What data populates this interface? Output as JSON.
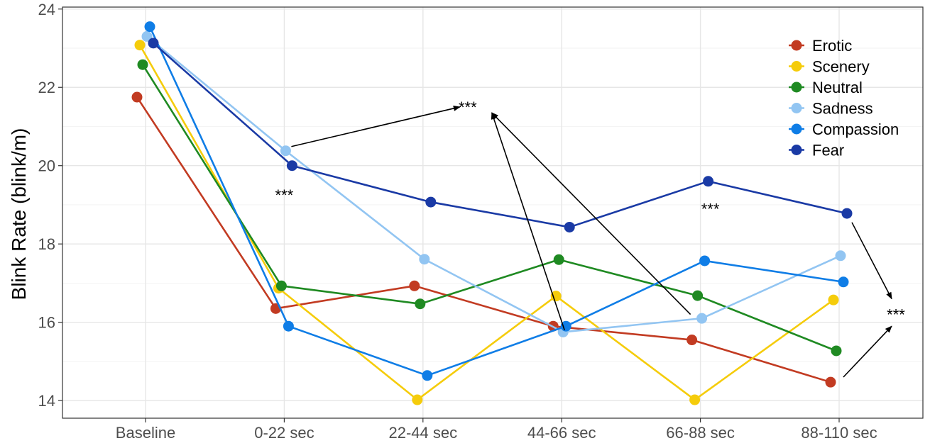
{
  "chart_data": {
    "type": "line",
    "title": "",
    "xlabel": "",
    "ylabel": "Blink Rate (blink/m)",
    "categories": [
      "Baseline",
      "0-22 sec",
      "22-44 sec",
      "44-66 sec",
      "66-88 sec",
      "88-110 sec"
    ],
    "ylim": [
      13.55,
      24.05
    ],
    "yticks": [
      14,
      16,
      18,
      20,
      22,
      24
    ],
    "ytick_labels": [
      "14",
      "16",
      "18",
      "20",
      "22",
      "24"
    ],
    "grid": true,
    "legend_position": "top-right",
    "series": [
      {
        "name": "Erotic",
        "color": "#c23b22",
        "values": [
          21.75,
          16.35,
          16.93,
          15.9,
          15.55,
          14.47
        ]
      },
      {
        "name": "Scenery",
        "color": "#f5cc0b",
        "values": [
          23.08,
          16.87,
          14.02,
          16.67,
          14.02,
          16.57
        ]
      },
      {
        "name": "Neutral",
        "color": "#1f8a22",
        "values": [
          22.58,
          16.93,
          16.47,
          17.6,
          16.68,
          15.27
        ]
      },
      {
        "name": "Sadness",
        "color": "#92c5f2",
        "values": [
          23.3,
          20.38,
          17.61,
          15.75,
          16.1,
          17.7
        ]
      },
      {
        "name": "Compassion",
        "color": "#0f7de6",
        "values": [
          23.55,
          15.9,
          14.64,
          15.9,
          17.57,
          17.03
        ]
      },
      {
        "name": "Fear",
        "color": "#1a3aa5",
        "values": [
          23.13,
          20.0,
          19.07,
          18.43,
          19.6,
          18.78
        ]
      }
    ],
    "annotations": [
      {
        "text": "***",
        "x": "0-22 sec",
        "y": 19.25
      },
      {
        "text": "***",
        "x": "22-44 sec",
        "y": 21.5
      },
      {
        "text": "***",
        "x": "66-88 sec",
        "y": 18.9
      },
      {
        "text": "***",
        "x": "88-110 sec",
        "y": 16.2
      }
    ]
  }
}
